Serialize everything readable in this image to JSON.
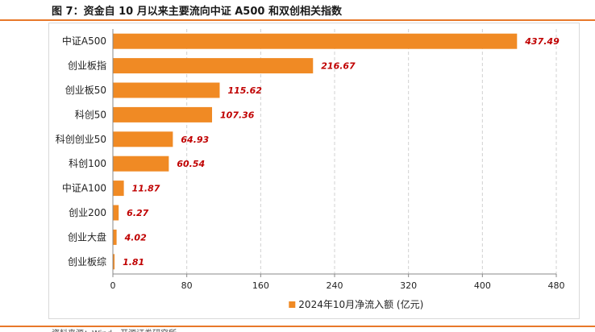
{
  "figure": {
    "title": "图 7：资金自 10 月以来主要流向中证 A500 和双创相关指数",
    "source": "资料来源：Wind，开源证券研究所"
  },
  "colors": {
    "bar": "#f08a24",
    "value_label": "#c00000",
    "grid": "#d0d0d0",
    "frame_accent": "#e8782a"
  },
  "chart_data": {
    "type": "bar",
    "orientation": "horizontal",
    "categories": [
      "中证A500",
      "创业板指",
      "创业板50",
      "科创50",
      "科创创业50",
      "科创100",
      "中证A100",
      "创业200",
      "创业大盘",
      "创业板综"
    ],
    "series": [
      {
        "name": "2024年10月净流入额 (亿元)",
        "values": [
          437.49,
          216.67,
          115.62,
          107.36,
          64.93,
          60.54,
          11.87,
          6.27,
          4.02,
          1.81
        ]
      }
    ],
    "value_labels": [
      "437.49",
      "216.67",
      "115.62",
      "107.36",
      "64.93",
      "60.54",
      "11.87",
      "6.27",
      "4.02",
      "1.81"
    ],
    "xlim": [
      0,
      480
    ],
    "x_ticks": [
      0,
      80,
      160,
      240,
      320,
      400,
      480
    ],
    "grid": "vertical dashed",
    "legend_position": "bottom-center"
  }
}
